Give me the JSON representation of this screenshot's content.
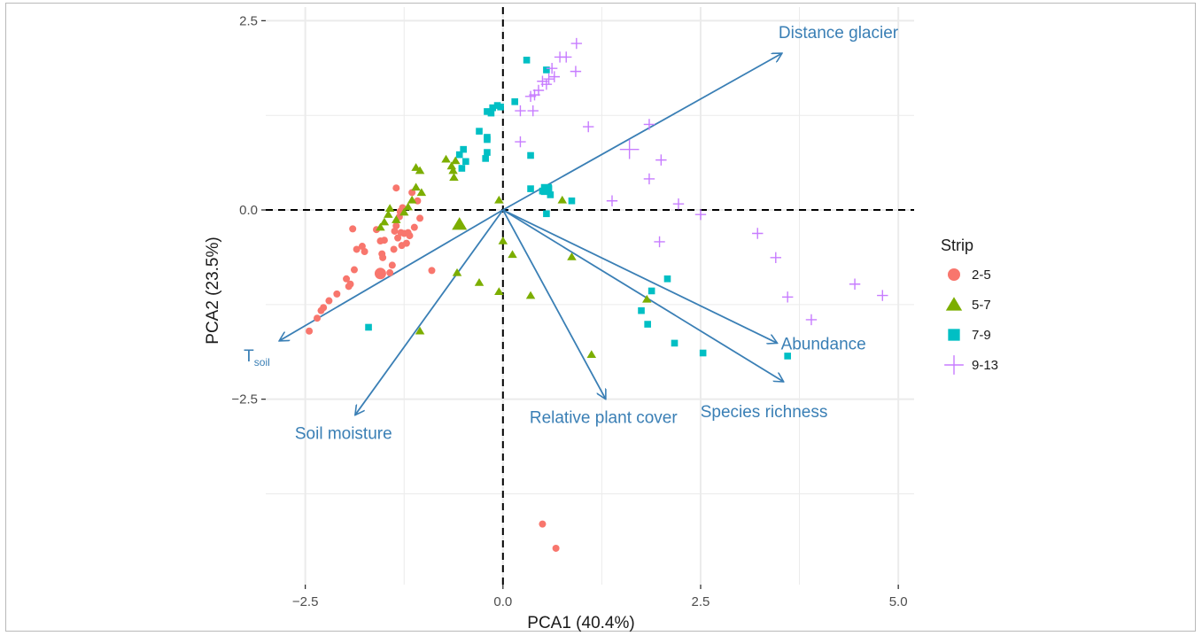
{
  "chart_data": {
    "type": "scatter",
    "title": "",
    "xlabel": "PCA1 (40.4%)",
    "ylabel": "PCA2 (23.5%)",
    "xlim": [
      -3.0,
      5.2
    ],
    "ylim": [
      -4.95,
      2.68
    ],
    "x_ticks": [
      -2.5,
      0.0,
      2.5,
      5.0
    ],
    "x_tick_labels": [
      "−2.5",
      "0.0",
      "2.5",
      "5.0"
    ],
    "y_ticks": [
      2.5,
      0.0,
      -2.5
    ],
    "y_tick_labels": [
      "2.5",
      "0.0",
      "−2.5"
    ],
    "grid": true,
    "reference_lines": {
      "x": 0,
      "y": 0,
      "style": "dashed"
    },
    "legend": {
      "title": "Strip",
      "position": "right",
      "entries": [
        {
          "label": "2-5",
          "shape": "circle",
          "color": "#F8766D"
        },
        {
          "label": "5-7",
          "shape": "triangle",
          "color": "#7CAE00"
        },
        {
          "label": "7-9",
          "shape": "square",
          "color": "#00BFC4"
        },
        {
          "label": "9-13",
          "shape": "plus",
          "color": "#C77CFF"
        }
      ]
    },
    "arrow_color": "#3A7FB5",
    "arrows": [
      {
        "label": "Distance glacier",
        "x": 3.53,
        "y": 2.07
      },
      {
        "label": "Abundance",
        "x": 3.47,
        "y": -1.76
      },
      {
        "label": "Species richness",
        "x": 3.55,
        "y": -2.27
      },
      {
        "label": "Relative plant cover",
        "x": 1.3,
        "y": -2.5
      },
      {
        "label": "Soil  moisture",
        "x": -1.87,
        "y": -2.71
      },
      {
        "label": "T",
        "label_sub": "soil",
        "x": -2.83,
        "y": -1.73
      }
    ],
    "series": [
      {
        "name": "2-5",
        "points": [
          [
            -2.45,
            -1.6
          ],
          [
            -2.35,
            -1.43
          ],
          [
            -2.3,
            -1.33
          ],
          [
            -2.27,
            -1.29
          ],
          [
            -2.2,
            -1.2
          ],
          [
            -2.1,
            -1.11
          ],
          [
            -1.98,
            -0.91
          ],
          [
            -1.95,
            -1.01
          ],
          [
            -1.93,
            -0.98
          ],
          [
            -1.88,
            -0.79
          ],
          [
            -1.85,
            -0.52
          ],
          [
            -1.9,
            -0.25
          ],
          [
            -1.78,
            -0.48
          ],
          [
            -1.75,
            -0.55
          ],
          [
            -1.55,
            -0.41
          ],
          [
            -1.53,
            -0.58
          ],
          [
            -1.52,
            -0.63
          ],
          [
            -1.5,
            -0.4
          ],
          [
            -1.43,
            -0.83
          ],
          [
            -1.4,
            -0.73
          ],
          [
            -1.38,
            -0.52
          ],
          [
            -1.37,
            -0.28
          ],
          [
            -1.35,
            -0.21
          ],
          [
            -1.33,
            -0.37
          ],
          [
            -1.31,
            -0.09
          ],
          [
            -1.3,
            -0.02
          ],
          [
            -1.29,
            -0.3
          ],
          [
            -1.28,
            -0.47
          ],
          [
            -1.25,
            -0.31
          ],
          [
            -1.22,
            -0.44
          ],
          [
            -1.27,
            0.03
          ],
          [
            -1.2,
            -0.3
          ],
          [
            -1.18,
            -0.34
          ],
          [
            -1.15,
            0.23
          ],
          [
            -1.12,
            -0.23
          ],
          [
            -1.08,
            0.12
          ],
          [
            -1.05,
            -0.11
          ],
          [
            -1.35,
            0.29
          ],
          [
            -1.6,
            -0.26
          ],
          [
            -0.9,
            -0.8
          ],
          [
            0.5,
            -4.15
          ],
          [
            0.67,
            -4.47
          ]
        ],
        "large_points": [
          [
            -1.55,
            -0.84
          ]
        ]
      },
      {
        "name": "5-7",
        "points": [
          [
            -1.55,
            -0.23
          ],
          [
            -1.5,
            -0.16
          ],
          [
            -1.45,
            -0.06
          ],
          [
            -1.43,
            0.02
          ],
          [
            -1.35,
            -0.13
          ],
          [
            -1.25,
            -0.03
          ],
          [
            -1.2,
            0.04
          ],
          [
            -1.15,
            0.13
          ],
          [
            -1.1,
            0.3
          ],
          [
            -1.1,
            0.56
          ],
          [
            -1.05,
            0.52
          ],
          [
            -1.03,
            0.23
          ],
          [
            -0.72,
            0.67
          ],
          [
            -0.65,
            0.58
          ],
          [
            -0.63,
            0.52
          ],
          [
            -0.6,
            0.65
          ],
          [
            -0.62,
            0.43
          ],
          [
            -0.05,
            0.13
          ],
          [
            0.0,
            -0.41
          ],
          [
            -0.58,
            -0.83
          ],
          [
            -0.3,
            -0.96
          ],
          [
            -0.05,
            -1.08
          ],
          [
            0.12,
            -0.59
          ],
          [
            0.35,
            -1.13
          ],
          [
            0.75,
            0.13
          ],
          [
            0.87,
            -0.62
          ],
          [
            1.12,
            -1.91
          ],
          [
            1.82,
            -1.18
          ],
          [
            -1.05,
            -1.6
          ]
        ],
        "large_points": [
          [
            -0.55,
            -0.19
          ]
        ]
      },
      {
        "name": "7-9",
        "points": [
          [
            0.3,
            1.98
          ],
          [
            0.55,
            1.85
          ],
          [
            0.15,
            1.43
          ],
          [
            -0.07,
            1.38
          ],
          [
            -0.03,
            1.36
          ],
          [
            -0.13,
            1.35
          ],
          [
            -0.15,
            1.28
          ],
          [
            -0.2,
            1.3
          ],
          [
            -0.3,
            1.04
          ],
          [
            -0.2,
            0.96
          ],
          [
            -0.2,
            0.93
          ],
          [
            -0.5,
            0.8
          ],
          [
            -0.55,
            0.73
          ],
          [
            -0.47,
            0.64
          ],
          [
            -0.2,
            0.76
          ],
          [
            -0.22,
            0.68
          ],
          [
            -0.52,
            0.55
          ],
          [
            0.35,
            0.72
          ],
          [
            0.35,
            0.28
          ],
          [
            0.5,
            0.25
          ],
          [
            0.58,
            0.28
          ],
          [
            0.6,
            0.2
          ],
          [
            0.87,
            0.12
          ],
          [
            0.55,
            -0.05
          ],
          [
            1.75,
            -1.33
          ],
          [
            1.83,
            -1.51
          ],
          [
            1.88,
            -1.07
          ],
          [
            2.08,
            -0.91
          ],
          [
            2.17,
            -1.76
          ],
          [
            2.53,
            -1.89
          ],
          [
            3.6,
            -1.93
          ],
          [
            -1.7,
            -1.55
          ]
        ],
        "large_points": [
          [
            0.55,
            0.27
          ]
        ]
      },
      {
        "name": "9-13",
        "points": [
          [
            0.93,
            2.2
          ],
          [
            0.8,
            2.02
          ],
          [
            0.72,
            2.02
          ],
          [
            0.65,
            1.76
          ],
          [
            0.62,
            1.87
          ],
          [
            0.58,
            1.73
          ],
          [
            0.55,
            1.66
          ],
          [
            0.5,
            1.7
          ],
          [
            0.45,
            1.58
          ],
          [
            0.4,
            1.52
          ],
          [
            0.35,
            1.5
          ],
          [
            0.92,
            1.83
          ],
          [
            0.22,
            1.31
          ],
          [
            0.38,
            1.31
          ],
          [
            1.08,
            1.1
          ],
          [
            0.22,
            0.9
          ],
          [
            1.85,
            1.13
          ],
          [
            2.0,
            0.66
          ],
          [
            1.85,
            0.41
          ],
          [
            1.38,
            0.12
          ],
          [
            2.22,
            0.08
          ],
          [
            2.5,
            -0.06
          ],
          [
            3.22,
            -0.31
          ],
          [
            3.45,
            -0.63
          ],
          [
            3.6,
            -1.15
          ],
          [
            3.9,
            -1.45
          ],
          [
            4.45,
            -0.98
          ],
          [
            4.8,
            -1.13
          ],
          [
            1.98,
            -0.42
          ]
        ],
        "large_points": [
          [
            1.6,
            0.8
          ]
        ]
      }
    ]
  }
}
